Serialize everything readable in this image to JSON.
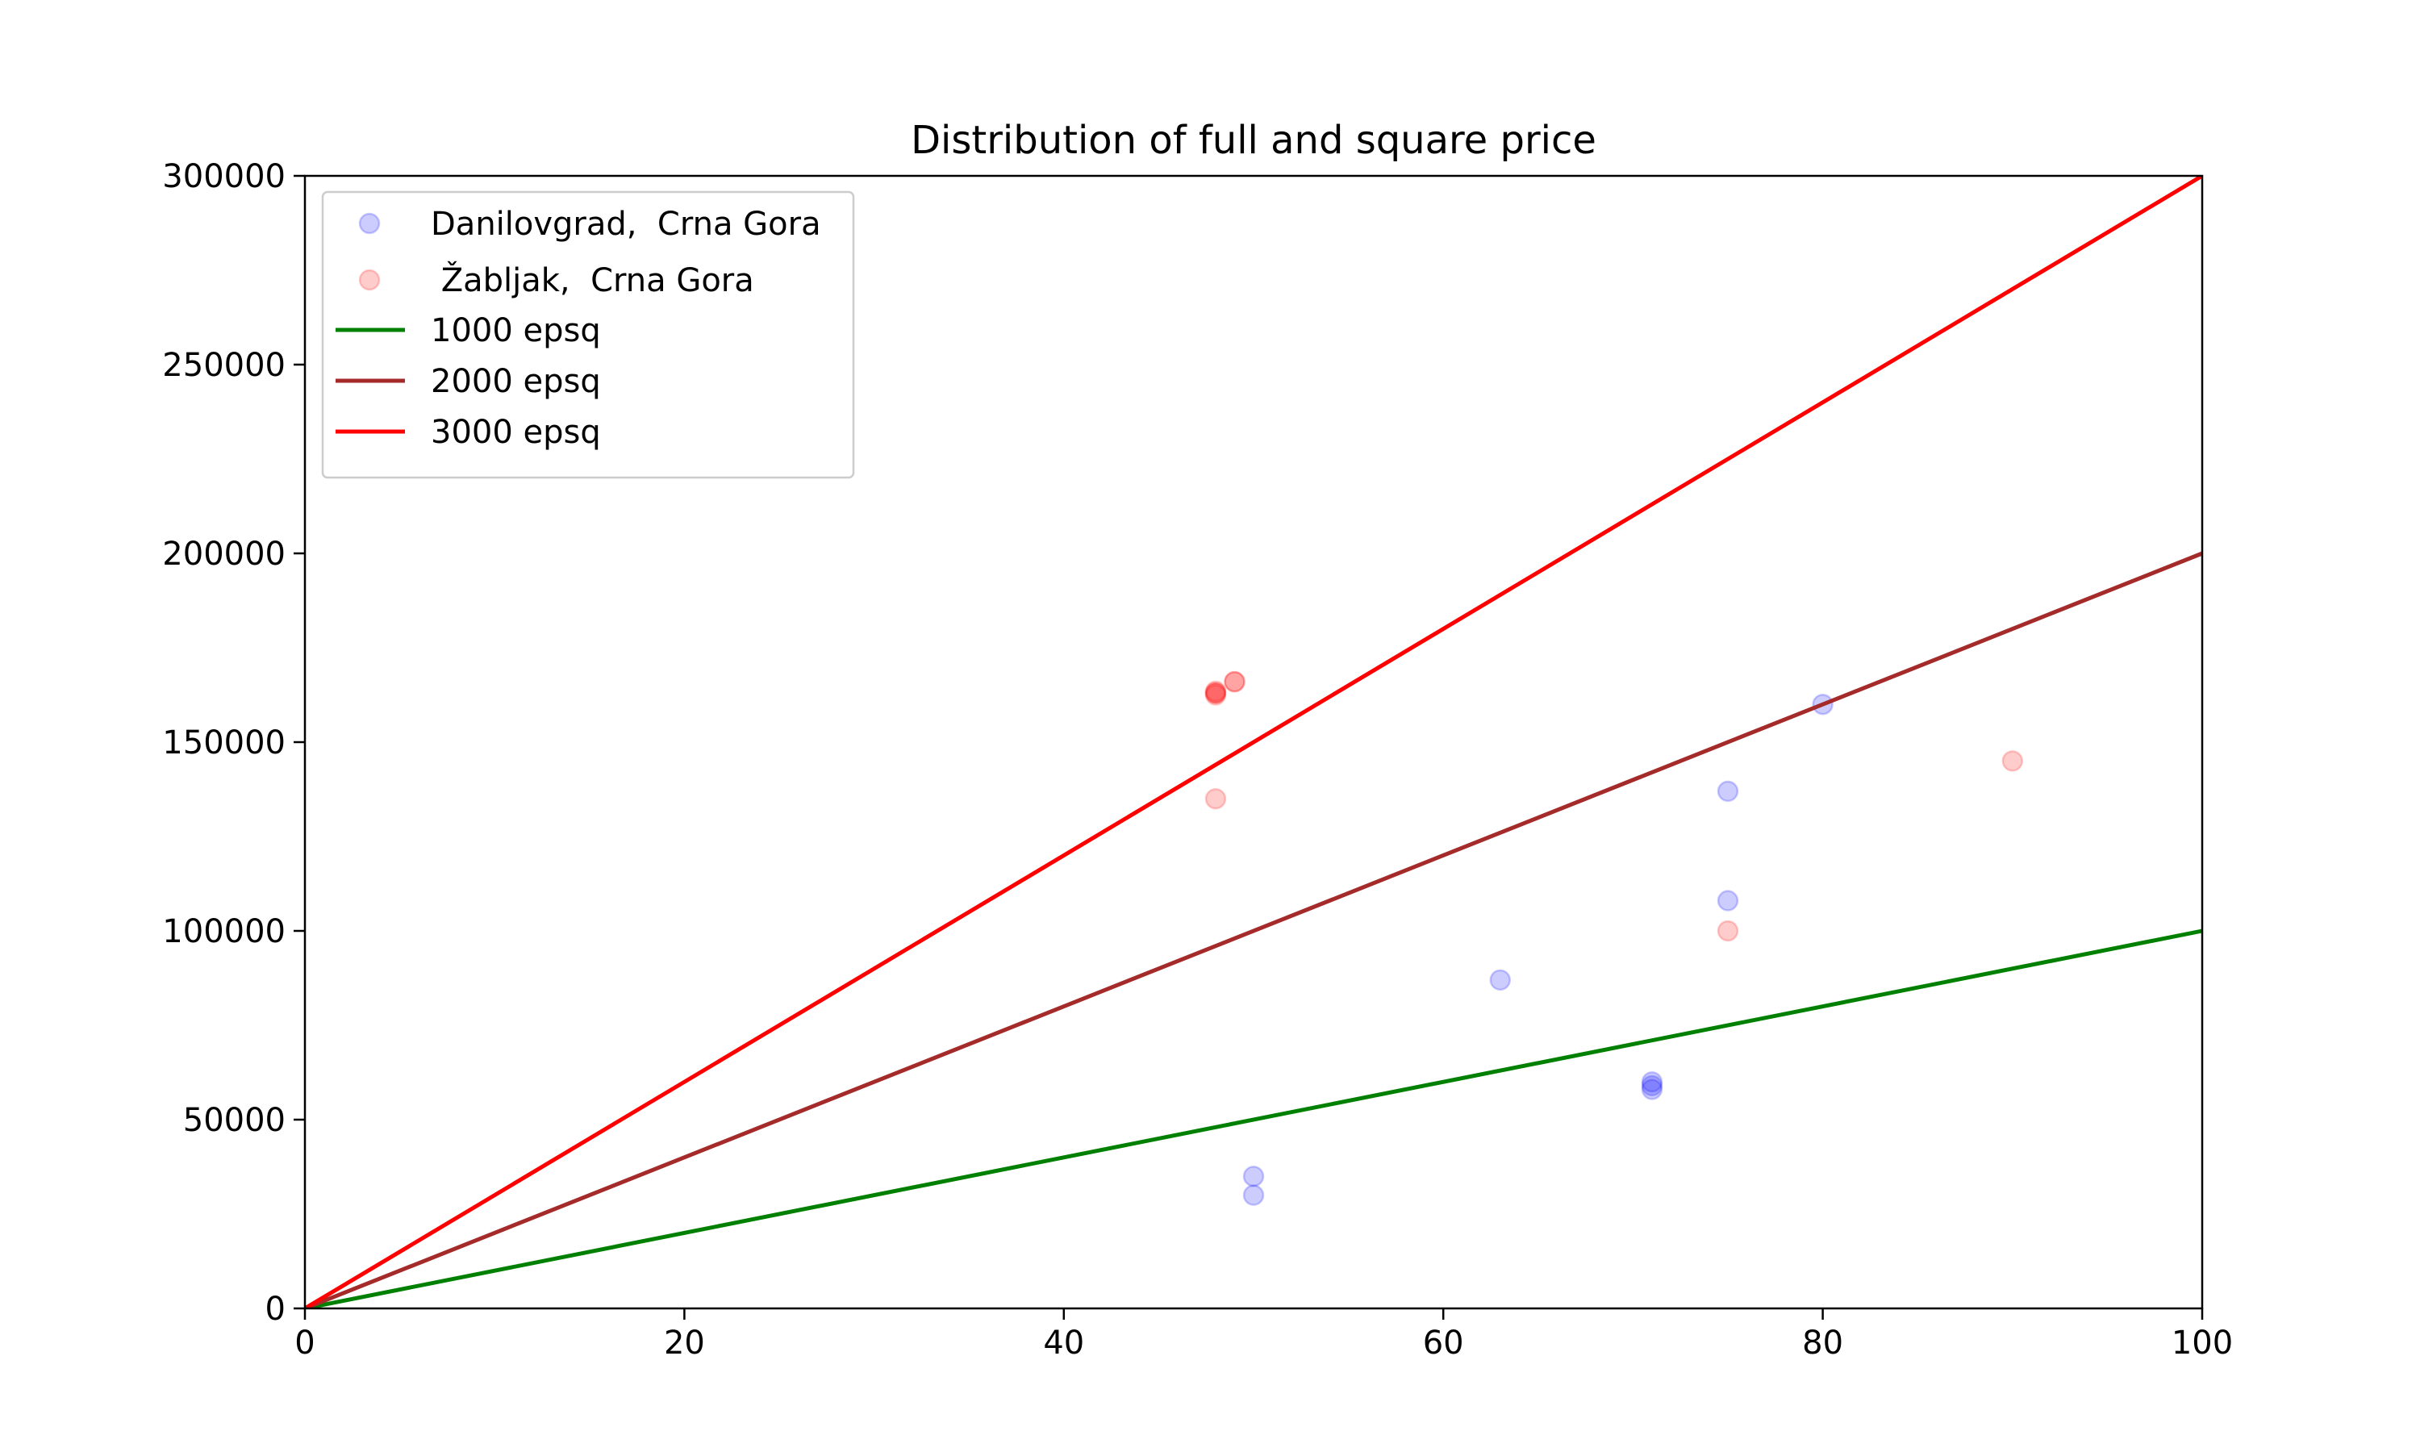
{
  "chart_data": {
    "type": "scatter",
    "title": "Distribution of full and square price",
    "xlabel": "",
    "ylabel": "",
    "xlim": [
      0,
      100
    ],
    "ylim": [
      0,
      300000
    ],
    "x_ticks": [
      0,
      20,
      40,
      60,
      80,
      100
    ],
    "x_tick_labels": [
      "0",
      "20",
      "40",
      "60",
      "80",
      "100"
    ],
    "y_ticks": [
      0,
      50000,
      100000,
      150000,
      200000,
      250000,
      300000
    ],
    "y_tick_labels": [
      "0",
      "50000",
      "100000",
      "150000",
      "200000",
      "250000",
      "300000"
    ],
    "grid": false,
    "legend_position": "top-left",
    "series": [
      {
        "name": "Danilovgrad,  Crna Gora",
        "kind": "scatter",
        "color": "#0000ff",
        "opacity": 0.2,
        "points": [
          {
            "x": 50,
            "y": 35000
          },
          {
            "x": 50,
            "y": 30000
          },
          {
            "x": 63,
            "y": 87000
          },
          {
            "x": 71,
            "y": 60000
          },
          {
            "x": 71,
            "y": 59000
          },
          {
            "x": 71,
            "y": 58000
          },
          {
            "x": 75,
            "y": 137000
          },
          {
            "x": 75,
            "y": 108000
          },
          {
            "x": 80,
            "y": 160000
          }
        ]
      },
      {
        "name": " Žabljak,  Crna Gora",
        "kind": "scatter",
        "color": "#ff0000",
        "opacity": 0.2,
        "points": [
          {
            "x": 48,
            "y": 163000
          },
          {
            "x": 48,
            "y": 163000
          },
          {
            "x": 48,
            "y": 162500
          },
          {
            "x": 48,
            "y": 163500
          },
          {
            "x": 49,
            "y": 166000
          },
          {
            "x": 49,
            "y": 166000
          },
          {
            "x": 48,
            "y": 135000
          },
          {
            "x": 75,
            "y": 100000
          },
          {
            "x": 90,
            "y": 145000
          }
        ]
      },
      {
        "name": "1000 epsq",
        "kind": "line",
        "color": "#008000",
        "points": [
          {
            "x": 0,
            "y": 0
          },
          {
            "x": 100,
            "y": 100000
          }
        ]
      },
      {
        "name": "2000 epsq",
        "kind": "line",
        "color": "#a52a2a",
        "points": [
          {
            "x": 0,
            "y": 0
          },
          {
            "x": 100,
            "y": 200000
          }
        ]
      },
      {
        "name": "3000 epsq",
        "kind": "line",
        "color": "#ff0000",
        "points": [
          {
            "x": 0,
            "y": 0
          },
          {
            "x": 100,
            "y": 300000
          }
        ]
      }
    ]
  }
}
